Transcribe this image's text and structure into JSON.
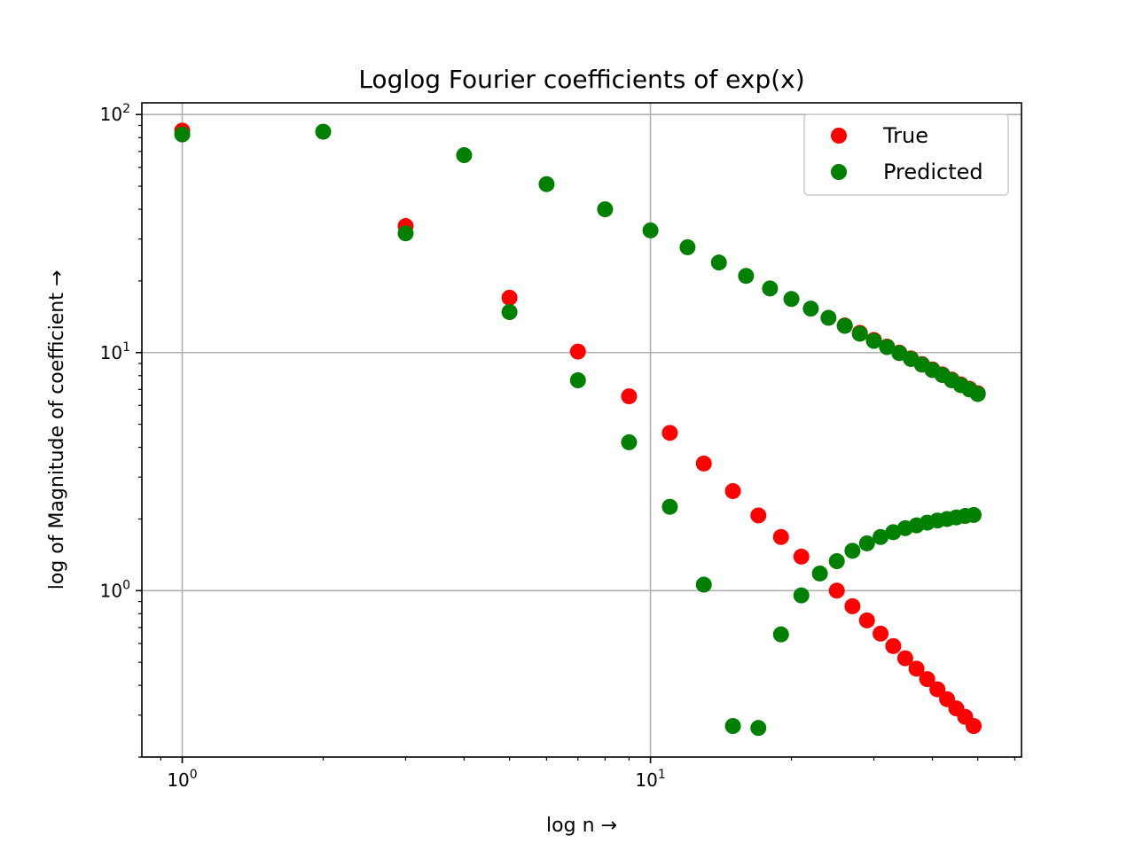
{
  "chart_data": {
    "type": "scatter",
    "title": "Loglog Fourier coefficients of exp(x)",
    "xlabel": "log n →",
    "ylabel": "log of Magnitude of coefficient →",
    "xscale": "log",
    "yscale": "log",
    "xlim": [
      0.82,
      62
    ],
    "ylim": [
      0.2,
      112
    ],
    "x_ticks": [
      {
        "value": 1,
        "base": "10",
        "exp": "0"
      },
      {
        "value": 10,
        "base": "10",
        "exp": "1"
      }
    ],
    "y_ticks": [
      {
        "value": 1,
        "base": "10",
        "exp": "0"
      },
      {
        "value": 10,
        "base": "10",
        "exp": "1"
      },
      {
        "value": 100,
        "base": "10",
        "exp": "2"
      }
    ],
    "grid": true,
    "legend_position": "top-right",
    "series": [
      {
        "name": "True",
        "color": "#ff0000",
        "points": [
          [
            1,
            85.6
          ],
          [
            3,
            34.0
          ],
          [
            5,
            17.0
          ],
          [
            7,
            10.1
          ],
          [
            9,
            6.55
          ],
          [
            11,
            4.6
          ],
          [
            13,
            3.42
          ],
          [
            15,
            2.62
          ],
          [
            17,
            2.07
          ],
          [
            19,
            1.68
          ],
          [
            21,
            1.39
          ],
          [
            25,
            1.0
          ],
          [
            27,
            0.86
          ],
          [
            29,
            0.75
          ],
          [
            31,
            0.66
          ],
          [
            33,
            0.585
          ],
          [
            35,
            0.52
          ],
          [
            37,
            0.47
          ],
          [
            39,
            0.425
          ],
          [
            41,
            0.385
          ],
          [
            43,
            0.35
          ],
          [
            45,
            0.32
          ],
          [
            47,
            0.295
          ],
          [
            49,
            0.27
          ],
          [
            26,
            13.0
          ],
          [
            28,
            12.1
          ],
          [
            30,
            11.3
          ],
          [
            32,
            10.6
          ],
          [
            34,
            10.0
          ],
          [
            36,
            9.45
          ],
          [
            38,
            8.95
          ],
          [
            40,
            8.5
          ],
          [
            42,
            8.1
          ],
          [
            44,
            7.7
          ],
          [
            46,
            7.35
          ],
          [
            48,
            7.05
          ],
          [
            50,
            6.75
          ]
        ]
      },
      {
        "name": "Predicted",
        "color": "#008000",
        "points": [
          [
            1,
            82.5
          ],
          [
            3,
            31.7
          ],
          [
            5,
            14.8
          ],
          [
            7,
            7.65
          ],
          [
            9,
            4.2
          ],
          [
            11,
            2.25
          ],
          [
            13,
            1.06
          ],
          [
            15,
            0.27
          ],
          [
            17,
            0.265
          ],
          [
            19,
            0.655
          ],
          [
            21,
            0.955
          ],
          [
            23,
            1.18
          ],
          [
            25,
            1.33
          ],
          [
            27,
            1.47
          ],
          [
            29,
            1.58
          ],
          [
            31,
            1.68
          ],
          [
            33,
            1.76
          ],
          [
            35,
            1.83
          ],
          [
            37,
            1.88
          ],
          [
            39,
            1.93
          ],
          [
            41,
            1.97
          ],
          [
            43,
            2.0
          ],
          [
            45,
            2.03
          ],
          [
            47,
            2.06
          ],
          [
            49,
            2.08
          ],
          [
            2,
            84.7
          ],
          [
            4,
            67.5
          ],
          [
            6,
            51.0
          ],
          [
            8,
            40.0
          ],
          [
            10,
            32.6
          ],
          [
            12,
            27.7
          ],
          [
            14,
            23.9
          ],
          [
            16,
            21.0
          ],
          [
            18,
            18.6
          ],
          [
            20,
            16.8
          ],
          [
            22,
            15.3
          ],
          [
            24,
            14.0
          ],
          [
            26,
            12.95
          ],
          [
            28,
            12.0
          ],
          [
            30,
            11.2
          ],
          [
            32,
            10.55
          ],
          [
            34,
            9.95
          ],
          [
            36,
            9.4
          ],
          [
            38,
            8.9
          ],
          [
            40,
            8.45
          ],
          [
            42,
            8.05
          ],
          [
            44,
            7.65
          ],
          [
            46,
            7.3
          ],
          [
            48,
            7.0
          ],
          [
            50,
            6.7
          ]
        ]
      }
    ]
  }
}
